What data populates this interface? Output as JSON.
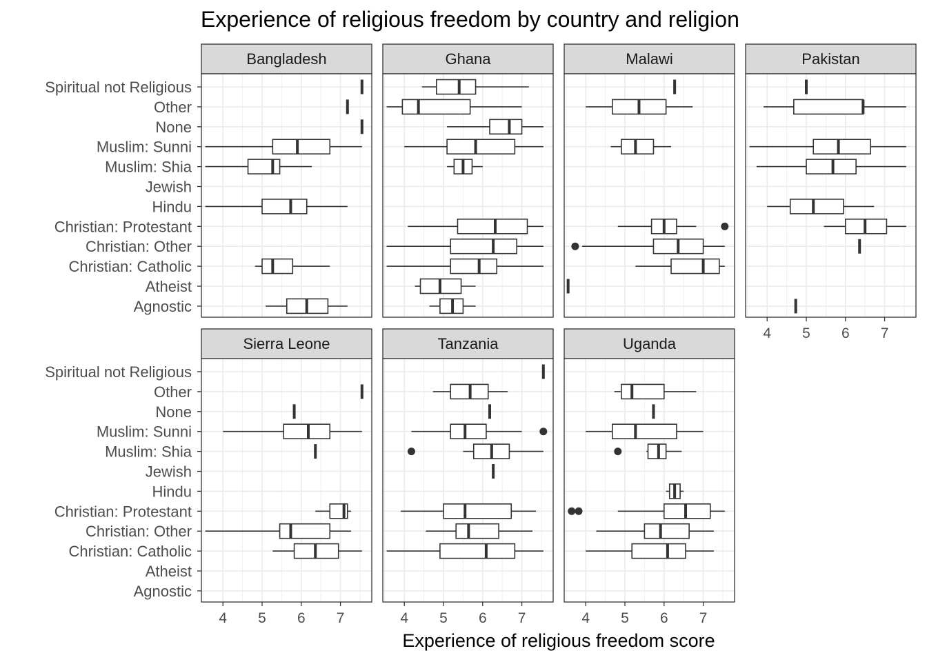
{
  "chart_data": {
    "type": "boxplot",
    "title": "Experience of religious freedom by country and religion",
    "xlabel": "Experience of religious freedom score",
    "ylabel": "",
    "xlim": [
      3.45,
      7.8
    ],
    "x_ticks": [
      4,
      5,
      6,
      7
    ],
    "grid": true,
    "categories": [
      "Spiritual not Religious",
      "Other",
      "None",
      "Muslim: Sunni",
      "Muslim: Shia",
      "Jewish",
      "Hindu",
      "Christian: Protestant",
      "Christian: Other",
      "Christian: Catholic",
      "Atheist",
      "Agnostic"
    ],
    "facets": [
      {
        "name": "Bangladesh",
        "boxes": [
          {
            "category": "Spiritual not Religious",
            "min": 7.55,
            "q1": 7.55,
            "median": 7.55,
            "q3": 7.55,
            "max": 7.55,
            "outliers": []
          },
          {
            "category": "Other",
            "min": 7.18,
            "q1": 7.18,
            "median": 7.18,
            "q3": 7.18,
            "max": 7.18,
            "outliers": []
          },
          {
            "category": "None",
            "min": 7.55,
            "q1": 7.55,
            "median": 7.55,
            "q3": 7.55,
            "max": 7.55,
            "outliers": []
          },
          {
            "category": "Muslim: Sunni",
            "min": 3.55,
            "q1": 5.27,
            "median": 5.9,
            "q3": 6.73,
            "max": 7.55,
            "outliers": []
          },
          {
            "category": "Muslim: Shia",
            "min": 3.55,
            "q1": 4.64,
            "median": 5.27,
            "q3": 5.45,
            "max": 6.27,
            "outliers": []
          },
          {
            "category": "Hindu",
            "min": 3.55,
            "q1": 5.0,
            "median": 5.73,
            "q3": 6.14,
            "max": 7.18,
            "outliers": []
          },
          {
            "category": "Christian: Catholic",
            "min": 4.82,
            "q1": 5.0,
            "median": 5.27,
            "q3": 5.78,
            "max": 6.73,
            "outliers": []
          },
          {
            "category": "Agnostic",
            "min": 5.09,
            "q1": 5.63,
            "median": 6.14,
            "q3": 6.68,
            "max": 7.18,
            "outliers": []
          }
        ]
      },
      {
        "name": "Ghana",
        "boxes": [
          {
            "category": "Spiritual not Religious",
            "min": 4.45,
            "q1": 4.82,
            "median": 5.4,
            "q3": 5.82,
            "max": 7.18,
            "outliers": []
          },
          {
            "category": "Other",
            "min": 3.55,
            "q1": 3.95,
            "median": 4.36,
            "q3": 5.68,
            "max": 7.0,
            "outliers": []
          },
          {
            "category": "None",
            "min": 5.09,
            "q1": 6.18,
            "median": 6.68,
            "q3": 7.0,
            "max": 7.55,
            "outliers": []
          },
          {
            "category": "Muslim: Sunni",
            "min": 4.0,
            "q1": 5.09,
            "median": 5.82,
            "q3": 6.82,
            "max": 7.55,
            "outliers": []
          },
          {
            "category": "Muslim: Shia",
            "min": 5.09,
            "q1": 5.27,
            "median": 5.5,
            "q3": 5.73,
            "max": 6.0,
            "outliers": []
          },
          {
            "category": "Christian: Protestant",
            "min": 4.09,
            "q1": 5.36,
            "median": 6.32,
            "q3": 7.14,
            "max": 7.55,
            "outliers": []
          },
          {
            "category": "Christian: Other",
            "min": 3.55,
            "q1": 5.18,
            "median": 6.27,
            "q3": 6.87,
            "max": 7.55,
            "outliers": []
          },
          {
            "category": "Christian: Catholic",
            "min": 3.55,
            "q1": 5.18,
            "median": 5.91,
            "q3": 6.36,
            "max": 7.55,
            "outliers": []
          },
          {
            "category": "Atheist",
            "min": 4.27,
            "q1": 4.41,
            "median": 4.91,
            "q3": 5.45,
            "max": 5.82,
            "outliers": []
          },
          {
            "category": "Agnostic",
            "min": 4.64,
            "q1": 4.91,
            "median": 5.23,
            "q3": 5.5,
            "max": 5.82,
            "outliers": []
          }
        ]
      },
      {
        "name": "Malawi",
        "boxes": [
          {
            "category": "Spiritual not Religious",
            "min": 6.27,
            "q1": 6.27,
            "median": 6.27,
            "q3": 6.27,
            "max": 6.27,
            "outliers": []
          },
          {
            "category": "Other",
            "min": 4.0,
            "q1": 4.68,
            "median": 5.36,
            "q3": 6.05,
            "max": 6.73,
            "outliers": []
          },
          {
            "category": "Muslim: Sunni",
            "min": 4.64,
            "q1": 4.91,
            "median": 5.27,
            "q3": 5.73,
            "max": 6.18,
            "outliers": []
          },
          {
            "category": "Christian: Protestant",
            "min": 4.82,
            "q1": 5.68,
            "median": 6.0,
            "q3": 6.32,
            "max": 6.82,
            "outliers": [
              7.55
            ]
          },
          {
            "category": "Christian: Other",
            "min": 3.91,
            "q1": 5.73,
            "median": 6.36,
            "q3": 7.0,
            "max": 7.55,
            "outliers": [
              3.73
            ]
          },
          {
            "category": "Christian: Catholic",
            "min": 5.27,
            "q1": 6.18,
            "median": 7.0,
            "q3": 7.41,
            "max": 7.55,
            "outliers": []
          },
          {
            "category": "Atheist",
            "min": 3.55,
            "q1": 3.55,
            "median": 3.55,
            "q3": 3.55,
            "max": 3.55,
            "outliers": []
          }
        ]
      },
      {
        "name": "Pakistan",
        "boxes": [
          {
            "category": "Spiritual not Religious",
            "min": 5.0,
            "q1": 5.0,
            "median": 5.0,
            "q3": 5.0,
            "max": 5.0,
            "outliers": []
          },
          {
            "category": "Other",
            "min": 3.91,
            "q1": 4.68,
            "median": 6.45,
            "q3": 6.45,
            "max": 7.55,
            "outliers": []
          },
          {
            "category": "Muslim: Sunni",
            "min": 3.55,
            "q1": 5.18,
            "median": 5.82,
            "q3": 6.64,
            "max": 7.55,
            "outliers": []
          },
          {
            "category": "Muslim: Shia",
            "min": 3.73,
            "q1": 5.0,
            "median": 5.68,
            "q3": 6.27,
            "max": 7.55,
            "outliers": []
          },
          {
            "category": "Hindu",
            "min": 4.0,
            "q1": 4.59,
            "median": 5.18,
            "q3": 5.95,
            "max": 6.73,
            "outliers": []
          },
          {
            "category": "Christian: Protestant",
            "min": 5.45,
            "q1": 6.0,
            "median": 6.5,
            "q3": 7.05,
            "max": 7.55,
            "outliers": []
          },
          {
            "category": "Christian: Other",
            "min": 6.36,
            "q1": 6.36,
            "median": 6.36,
            "q3": 6.36,
            "max": 6.36,
            "outliers": []
          },
          {
            "category": "Agnostic",
            "min": 4.73,
            "q1": 4.73,
            "median": 4.73,
            "q3": 4.73,
            "max": 4.73,
            "outliers": []
          }
        ]
      },
      {
        "name": "Sierra Leone",
        "boxes": [
          {
            "category": "Other",
            "min": 7.55,
            "q1": 7.55,
            "median": 7.55,
            "q3": 7.55,
            "max": 7.55,
            "outliers": []
          },
          {
            "category": "None",
            "min": 5.82,
            "q1": 5.82,
            "median": 5.82,
            "q3": 5.82,
            "max": 5.82,
            "outliers": []
          },
          {
            "category": "Muslim: Sunni",
            "min": 4.0,
            "q1": 5.55,
            "median": 6.18,
            "q3": 6.73,
            "max": 7.55,
            "outliers": []
          },
          {
            "category": "Muslim: Shia",
            "min": 6.36,
            "q1": 6.36,
            "median": 6.36,
            "q3": 6.36,
            "max": 6.36,
            "outliers": []
          },
          {
            "category": "Christian: Protestant",
            "min": 6.36,
            "q1": 6.73,
            "median": 7.09,
            "q3": 7.18,
            "max": 7.27,
            "outliers": []
          },
          {
            "category": "Christian: Other",
            "min": 3.55,
            "q1": 5.45,
            "median": 5.73,
            "q3": 6.73,
            "max": 7.27,
            "outliers": []
          },
          {
            "category": "Christian: Catholic",
            "min": 5.27,
            "q1": 5.82,
            "median": 6.36,
            "q3": 6.95,
            "max": 7.55,
            "outliers": []
          }
        ]
      },
      {
        "name": "Tanzania",
        "boxes": [
          {
            "category": "Spiritual not Religious",
            "min": 7.55,
            "q1": 7.55,
            "median": 7.55,
            "q3": 7.55,
            "max": 7.55,
            "outliers": []
          },
          {
            "category": "Other",
            "min": 4.73,
            "q1": 5.18,
            "median": 5.68,
            "q3": 6.14,
            "max": 6.64,
            "outliers": []
          },
          {
            "category": "None",
            "min": 6.18,
            "q1": 6.18,
            "median": 6.18,
            "q3": 6.18,
            "max": 6.18,
            "outliers": []
          },
          {
            "category": "Muslim: Sunni",
            "min": 4.18,
            "q1": 5.18,
            "median": 5.55,
            "q3": 6.09,
            "max": 7.0,
            "outliers": [
              7.55
            ]
          },
          {
            "category": "Muslim: Shia",
            "min": 5.5,
            "q1": 5.77,
            "median": 6.23,
            "q3": 6.68,
            "max": 7.55,
            "outliers": [
              4.18
            ]
          },
          {
            "category": "Jewish",
            "min": 6.27,
            "q1": 6.27,
            "median": 6.27,
            "q3": 6.27,
            "max": 6.27,
            "outliers": []
          },
          {
            "category": "Christian: Protestant",
            "min": 3.91,
            "q1": 5.0,
            "median": 5.55,
            "q3": 6.73,
            "max": 7.36,
            "outliers": []
          },
          {
            "category": "Christian: Other",
            "min": 4.55,
            "q1": 5.32,
            "median": 5.64,
            "q3": 6.41,
            "max": 7.27,
            "outliers": []
          },
          {
            "category": "Christian: Catholic",
            "min": 3.55,
            "q1": 4.91,
            "median": 6.09,
            "q3": 6.82,
            "max": 7.55,
            "outliers": []
          }
        ]
      },
      {
        "name": "Uganda",
        "boxes": [
          {
            "category": "Other",
            "min": 4.73,
            "q1": 4.91,
            "median": 5.18,
            "q3": 6.0,
            "max": 6.82,
            "outliers": []
          },
          {
            "category": "None",
            "min": 5.73,
            "q1": 5.73,
            "median": 5.73,
            "q3": 5.73,
            "max": 5.73,
            "outliers": []
          },
          {
            "category": "Muslim: Sunni",
            "min": 4.0,
            "q1": 4.68,
            "median": 5.27,
            "q3": 6.32,
            "max": 7.0,
            "outliers": []
          },
          {
            "category": "Muslim: Shia",
            "min": 5.55,
            "q1": 5.59,
            "median": 5.86,
            "q3": 6.05,
            "max": 6.45,
            "outliers": [
              4.82
            ]
          },
          {
            "category": "Hindu",
            "min": 6.05,
            "q1": 6.14,
            "median": 6.27,
            "q3": 6.41,
            "max": 6.5,
            "outliers": []
          },
          {
            "category": "Christian: Protestant",
            "min": 4.82,
            "q1": 6.0,
            "median": 6.55,
            "q3": 7.18,
            "max": 7.55,
            "outliers": [
              3.64,
              3.82
            ]
          },
          {
            "category": "Christian: Other",
            "min": 4.27,
            "q1": 5.5,
            "median": 5.91,
            "q3": 6.64,
            "max": 7.27,
            "outliers": []
          },
          {
            "category": "Christian: Catholic",
            "min": 4.0,
            "q1": 5.18,
            "median": 6.09,
            "q3": 6.55,
            "max": 7.27,
            "outliers": []
          }
        ]
      }
    ]
  }
}
